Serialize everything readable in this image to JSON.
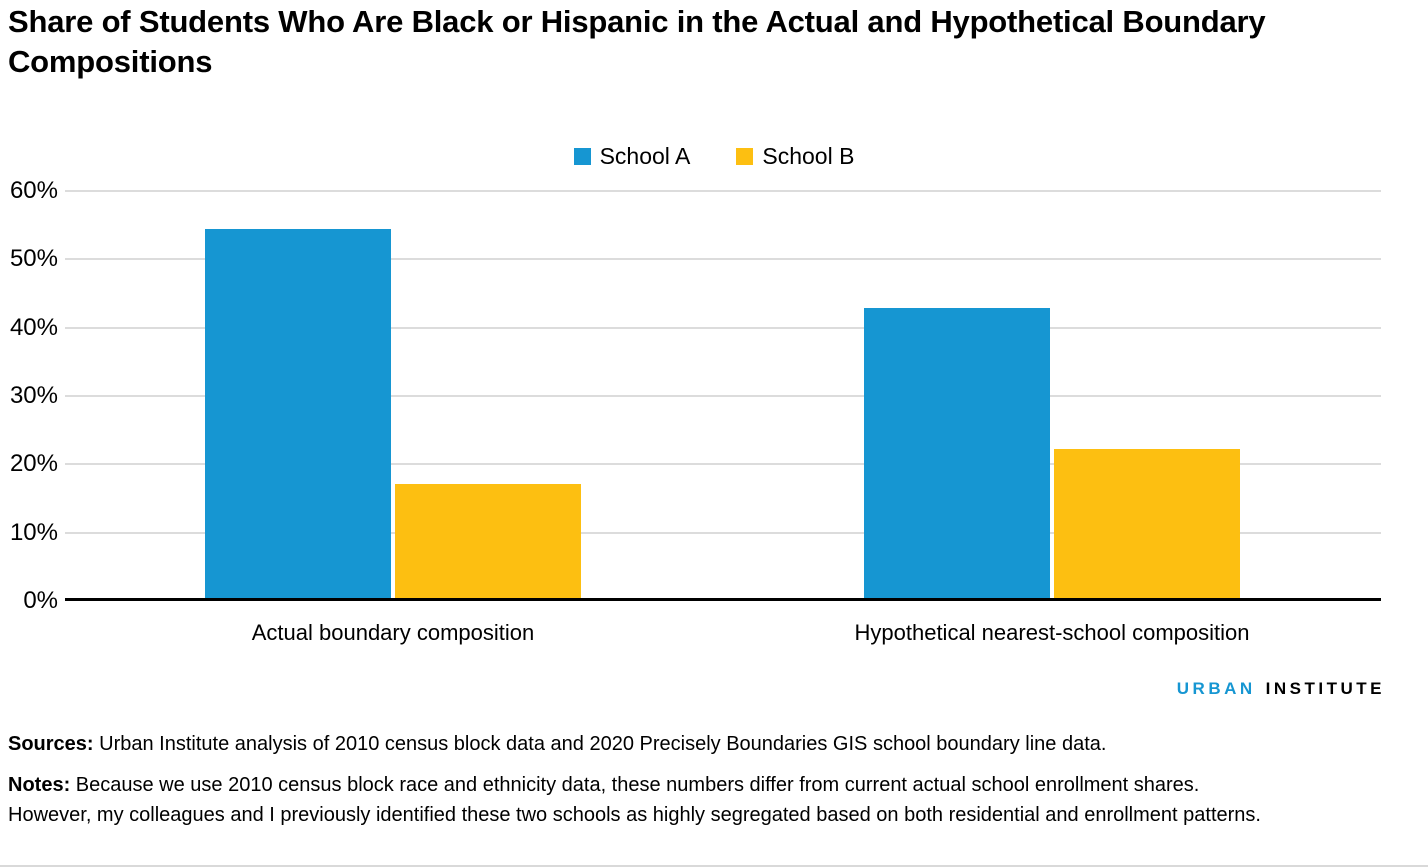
{
  "title": "Share of Students Who Are Black or Hispanic in the Actual and Hypothetical Boundary Compositions",
  "chart_data": {
    "type": "bar",
    "categories": [
      "Actual boundary composition",
      "Hypothetical nearest-school composition"
    ],
    "series": [
      {
        "name": "School A",
        "color": "#1696d2",
        "values": [
          54.0,
          42.5
        ]
      },
      {
        "name": "School B",
        "color": "#fdbf11",
        "values": [
          16.7,
          21.8
        ]
      }
    ],
    "ylim": [
      0,
      60
    ],
    "ytick_labels": [
      "60%",
      "50%",
      "40%",
      "30%",
      "20%",
      "10%",
      "0%"
    ],
    "grid": true,
    "legend_position": "top-center",
    "xlabel": "",
    "ylabel": ""
  },
  "branding": {
    "urban": "URBAN",
    "institute": "INSTITUTE",
    "urban_color": "#1696d2",
    "institute_color": "#000000"
  },
  "footer": {
    "sources_label": "Sources:",
    "sources_text": " Urban Institute analysis of 2010 census block data and 2020 Precisely Boundaries GIS school boundary line data.",
    "notes_label": "Notes:",
    "notes_text": " Because we use 2010 census block race and ethnicity data, these numbers differ from current actual school enrollment shares. However, my colleagues and I previously identified these two schools as highly segregated based on both residential and enrollment patterns."
  }
}
